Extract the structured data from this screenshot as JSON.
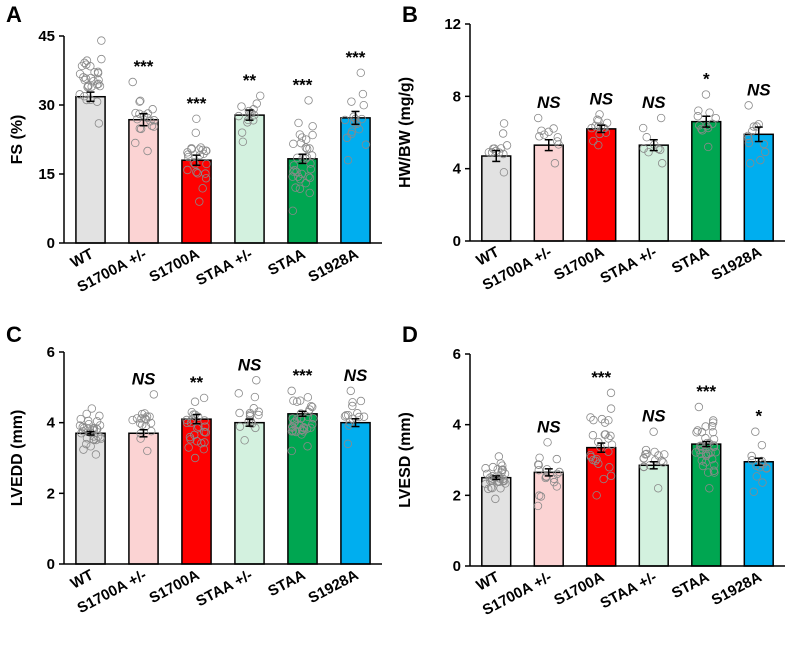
{
  "colors": {
    "WT": "#e2e2e2",
    "S1700A +/-": "#fbd3d3",
    "S1700A": "#ff0000",
    "STAA +/-": "#d3f1df",
    "STAA": "#00a651",
    "S1928A": "#00aeef"
  },
  "chart_data": [
    {
      "type": "bar",
      "panel": "A",
      "ylabel": "FS (%)",
      "xlabel": "",
      "ylim": [
        0,
        45
      ],
      "yticks": [
        "0",
        "15",
        "30",
        "45"
      ],
      "categories": [
        "WT",
        "S1700A +/-",
        "S1700A",
        "STAA +/-",
        "STAA",
        "S1928A"
      ],
      "values": [
        31.8,
        26.8,
        18.0,
        27.8,
        18.3,
        27.2
      ],
      "errors": [
        1.0,
        1.3,
        1.1,
        1.1,
        1.0,
        1.4
      ],
      "significance": [
        "",
        "***",
        "***",
        "**",
        "***",
        "***"
      ],
      "points_range": [
        [
          26,
          44
        ],
        [
          20,
          35
        ],
        [
          9,
          27
        ],
        [
          22,
          32
        ],
        [
          7,
          31
        ],
        [
          18,
          37
        ]
      ],
      "n_points": [
        30,
        18,
        24,
        14,
        34,
        16
      ]
    },
    {
      "type": "bar",
      "panel": "B",
      "ylabel": "HW/BW (mg/g)",
      "xlabel": "",
      "ylim": [
        0,
        12
      ],
      "yticks": [
        "0",
        "4",
        "8",
        "12"
      ],
      "categories": [
        "WT",
        "S1700A +/-",
        "S1700A",
        "STAA +/-",
        "STAA",
        "S1928A"
      ],
      "values": [
        4.7,
        5.3,
        6.2,
        5.3,
        6.6,
        5.9
      ],
      "errors": [
        0.3,
        0.3,
        0.2,
        0.3,
        0.3,
        0.4
      ],
      "significance": [
        "",
        "NS",
        "NS",
        "NS",
        "*",
        "NS"
      ],
      "points_range": [
        [
          3.8,
          6.5
        ],
        [
          4.3,
          6.8
        ],
        [
          5.3,
          7.0
        ],
        [
          4.3,
          6.8
        ],
        [
          5.2,
          8.1
        ],
        [
          4.3,
          7.5
        ]
      ],
      "n_points": [
        12,
        10,
        14,
        9,
        12,
        12
      ]
    },
    {
      "type": "bar",
      "panel": "C",
      "ylabel": "LVEDD (mm)",
      "xlabel": "",
      "ylim": [
        0,
        6
      ],
      "yticks": [
        "0",
        "2",
        "4",
        "6"
      ],
      "categories": [
        "WT",
        "S1700A +/-",
        "S1700A",
        "STAA +/-",
        "STAA",
        "S1928A"
      ],
      "values": [
        3.7,
        3.7,
        4.1,
        4.0,
        4.25,
        4.0
      ],
      "errors": [
        0.05,
        0.1,
        0.13,
        0.1,
        0.07,
        0.11
      ],
      "significance": [
        "",
        "NS",
        "**",
        "NS",
        "***",
        "NS"
      ],
      "points_range": [
        [
          3.1,
          4.4
        ],
        [
          3.2,
          4.8
        ],
        [
          3.0,
          4.7
        ],
        [
          3.5,
          5.2
        ],
        [
          3.2,
          4.9
        ],
        [
          3.4,
          4.9
        ]
      ],
      "n_points": [
        32,
        18,
        26,
        16,
        36,
        14
      ]
    },
    {
      "type": "bar",
      "panel": "D",
      "ylabel": "LVESD (mm)",
      "xlabel": "",
      "ylim": [
        0,
        6
      ],
      "yticks": [
        "0",
        "2",
        "4",
        "6"
      ],
      "categories": [
        "WT",
        "S1700A +/-",
        "S1700A",
        "STAA +/-",
        "STAA",
        "S1928A"
      ],
      "values": [
        2.5,
        2.65,
        3.35,
        2.85,
        3.45,
        2.95
      ],
      "errors": [
        0.05,
        0.1,
        0.13,
        0.1,
        0.07,
        0.1
      ],
      "significance": [
        "",
        "NS",
        "***",
        "NS",
        "***",
        "*"
      ],
      "points_range": [
        [
          1.9,
          3.1
        ],
        [
          1.7,
          3.5
        ],
        [
          2.0,
          4.9
        ],
        [
          2.2,
          3.8
        ],
        [
          2.2,
          4.5
        ],
        [
          2.1,
          3.8
        ]
      ],
      "n_points": [
        32,
        18,
        26,
        16,
        36,
        14
      ]
    }
  ]
}
